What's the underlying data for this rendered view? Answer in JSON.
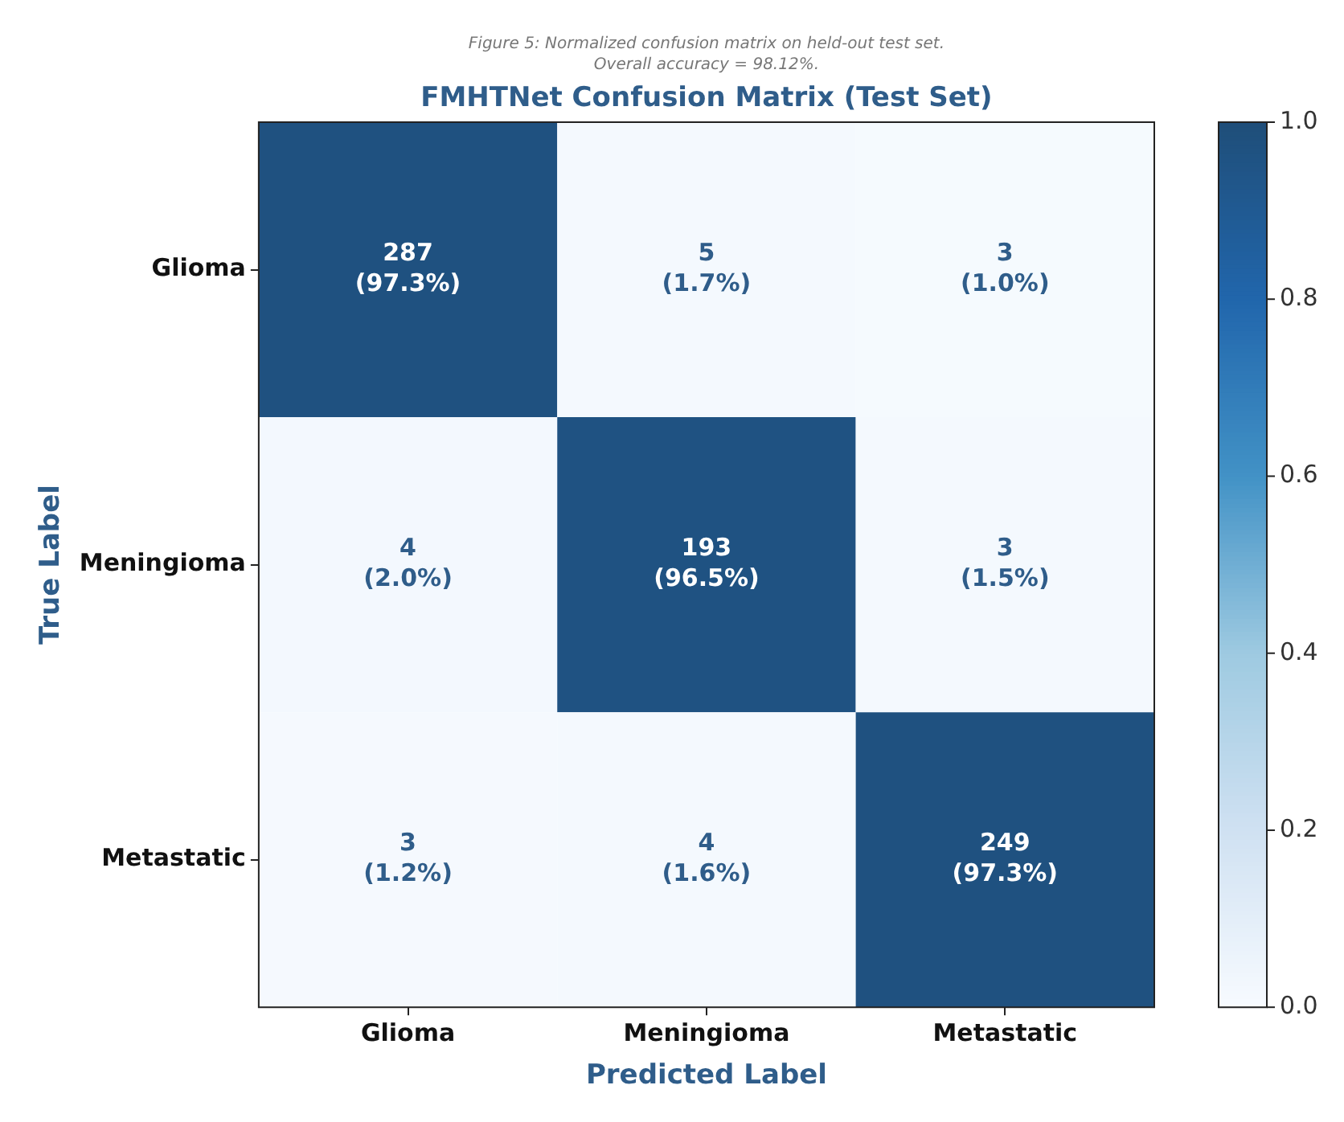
{
  "chart_data": {
    "type": "heatmap",
    "title": "FMHTNet Confusion Matrix (Test Set)",
    "subtitle": "Figure 5: Normalized confusion matrix on held-out test set.\nOverall accuracy = 98.12%.",
    "xlabel": "Predicted Label",
    "ylabel": "True Label",
    "categories": [
      "Glioma",
      "Meningioma",
      "Metastatic"
    ],
    "y_categories": [
      "Glioma",
      "Meningioma",
      "Metastatic"
    ],
    "cells": [
      [
        0.973,
        0.017,
        0.01
      ],
      [
        0.02,
        0.965,
        0.015
      ],
      [
        0.012,
        0.016,
        0.973
      ]
    ],
    "cell_labels": [
      [
        "287\n(97.3%)",
        "5\n(1.7%)",
        "3\n(1.0%)"
      ],
      [
        "4\n(2.0%)",
        "193\n(96.5%)",
        "3\n(1.5%)"
      ],
      [
        "3\n(1.2%)",
        "4\n(1.6%)",
        "249\n(97.3%)"
      ]
    ],
    "clim": [
      0,
      1
    ],
    "cticks": [
      {
        "value": 0,
        "label": "0.0"
      },
      {
        "value": 0.2,
        "label": "0.2"
      },
      {
        "value": 0.4,
        "label": "0.4"
      },
      {
        "value": 0.6,
        "label": "0.6"
      },
      {
        "value": 0.8,
        "label": "0.8"
      },
      {
        "value": 1,
        "label": "1.0"
      }
    ]
  }
}
